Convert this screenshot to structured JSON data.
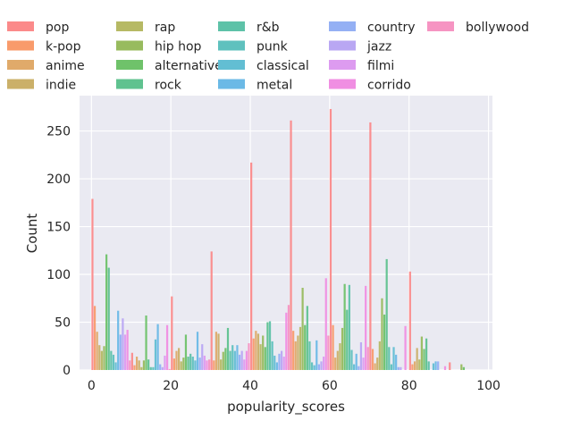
{
  "chart_data": {
    "type": "bar",
    "style": "grouped-histogram",
    "xlabel": "popularity_scores",
    "ylabel": "Count",
    "xlim": [
      -3,
      101
    ],
    "ylim": [
      0,
      287
    ],
    "xticks": [
      0,
      20,
      40,
      60,
      80,
      100
    ],
    "yticks": [
      0,
      50,
      100,
      150,
      200,
      250
    ],
    "grid": true,
    "legend_position": "top",
    "legend_columns": 5,
    "bin_edges": [
      0,
      10,
      20,
      30,
      40,
      50,
      60,
      70,
      80,
      90,
      100
    ],
    "series": [
      {
        "name": "pop",
        "color": "#fb8a8a",
        "values": [
          179,
          18,
          77,
          124,
          217,
          261,
          273,
          259,
          103,
          8
        ]
      },
      {
        "name": "k-pop",
        "color": "#f99b6b",
        "values": [
          67,
          5,
          12,
          10,
          33,
          41,
          47,
          22,
          6,
          0
        ]
      },
      {
        "name": "anime",
        "color": "#e0aa6a",
        "values": [
          40,
          14,
          20,
          40,
          41,
          30,
          13,
          7,
          9,
          0
        ]
      },
      {
        "name": "indie",
        "color": "#cbb069",
        "values": [
          26,
          10,
          23,
          38,
          38,
          36,
          20,
          13,
          23,
          0
        ]
      },
      {
        "name": "rap",
        "color": "#b6b964",
        "values": [
          20,
          3,
          9,
          11,
          27,
          45,
          28,
          30,
          11,
          0
        ]
      },
      {
        "name": "hip hop",
        "color": "#98bb5e",
        "values": [
          25,
          10,
          13,
          19,
          36,
          86,
          44,
          75,
          35,
          6
        ]
      },
      {
        "name": "alternative",
        "color": "#6fc26a",
        "values": [
          121,
          57,
          37,
          23,
          24,
          47,
          90,
          58,
          22,
          3
        ]
      },
      {
        "name": "rock",
        "color": "#5fc28f",
        "values": [
          107,
          11,
          14,
          44,
          50,
          67,
          63,
          116,
          33,
          0
        ]
      },
      {
        "name": "r&b",
        "color": "#5ec2a8",
        "values": [
          20,
          3,
          17,
          20,
          51,
          30,
          89,
          24,
          9,
          0
        ]
      },
      {
        "name": "punk",
        "color": "#5fc1be",
        "values": [
          16,
          3,
          14,
          26,
          30,
          8,
          21,
          6,
          0,
          0
        ]
      },
      {
        "name": "classical",
        "color": "#62bed3",
        "values": [
          8,
          32,
          10,
          20,
          15,
          5,
          6,
          24,
          7,
          0
        ]
      },
      {
        "name": "metal",
        "color": "#6bb9e6",
        "values": [
          62,
          48,
          40,
          26,
          8,
          31,
          17,
          16,
          9,
          0
        ]
      },
      {
        "name": "country",
        "color": "#94b0f4",
        "values": [
          37,
          6,
          13,
          16,
          17,
          6,
          4,
          3,
          9,
          0
        ]
      },
      {
        "name": "jazz",
        "color": "#b9a7f3",
        "values": [
          54,
          3,
          27,
          20,
          20,
          9,
          29,
          3,
          0,
          0
        ]
      },
      {
        "name": "filmi",
        "color": "#dd9bf0",
        "values": [
          37,
          15,
          15,
          11,
          14,
          14,
          13,
          0,
          0,
          0
        ]
      },
      {
        "name": "corrido",
        "color": "#f08ee2",
        "values": [
          42,
          47,
          10,
          20,
          60,
          96,
          88,
          46,
          4,
          0
        ]
      },
      {
        "name": "bollywood",
        "color": "#f694c2",
        "values": [
          10,
          1,
          11,
          28,
          68,
          36,
          24,
          0,
          0,
          0
        ]
      }
    ]
  }
}
